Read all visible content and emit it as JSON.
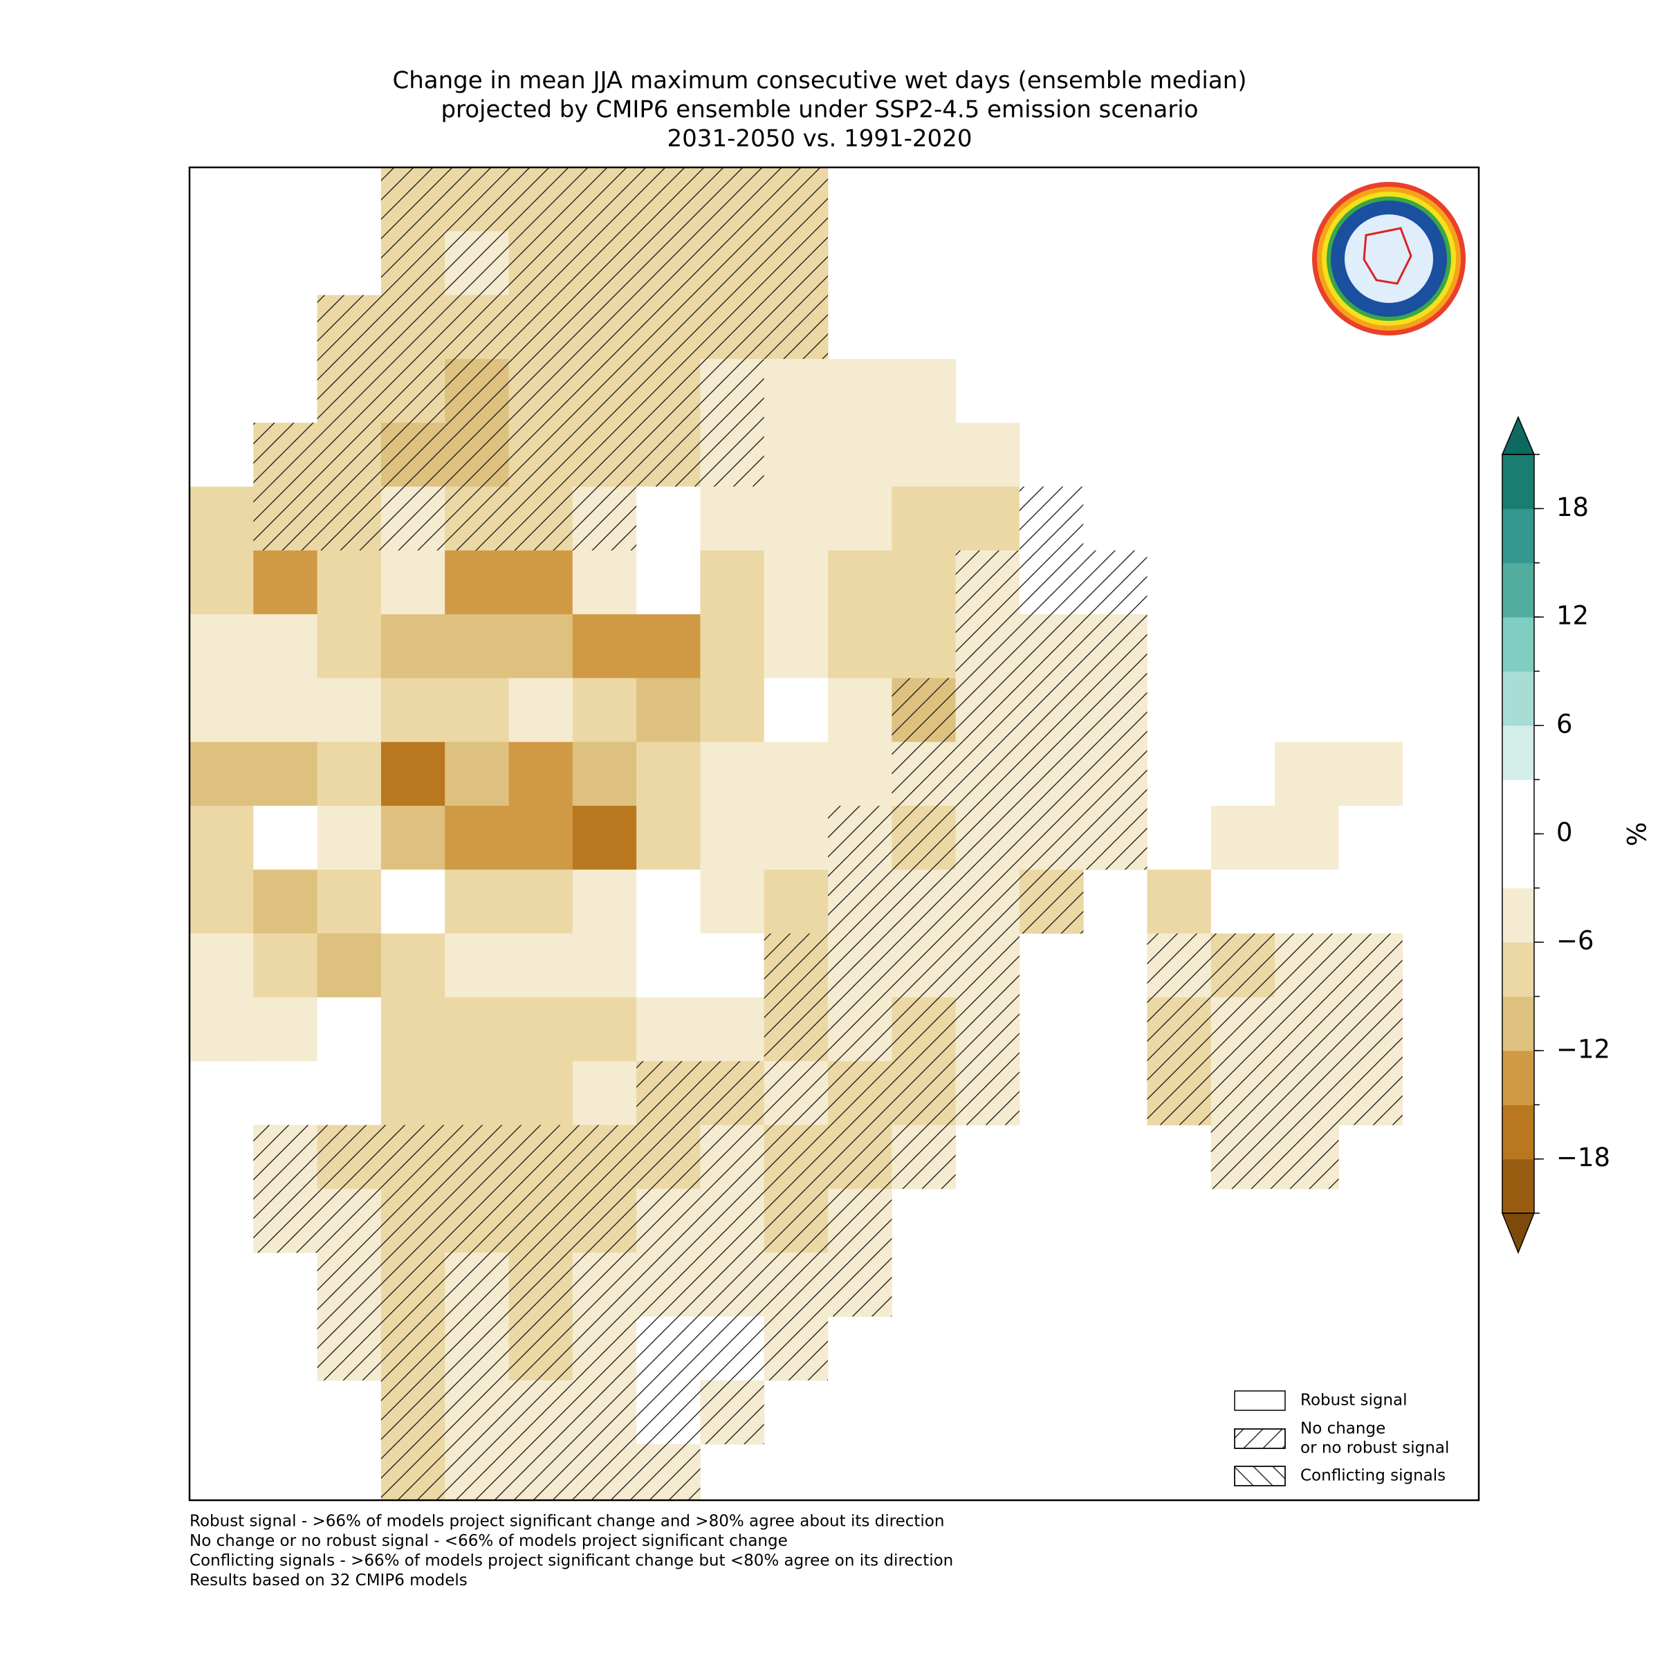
{
  "title": [
    "Change in mean JJA maximum consecutive wet days (ensemble median)",
    "projected by CMIP6 ensemble under SSP2-4.5 emission scenario",
    "2031-2050 vs. 1991-2020"
  ],
  "map": {
    "values": [
      [
        null,
        null,
        null,
        -6,
        -6,
        -6,
        -6,
        -6,
        -6,
        -6,
        null,
        null,
        null,
        null,
        null,
        null,
        null,
        null,
        null,
        null
      ],
      [
        null,
        null,
        null,
        -6,
        -5,
        -6,
        -8,
        -6,
        -6,
        -6,
        null,
        null,
        null,
        null,
        null,
        null,
        null,
        null,
        null,
        null
      ],
      [
        null,
        null,
        -6,
        -8,
        -8,
        -6,
        -8,
        -6,
        -6,
        -6,
        null,
        null,
        null,
        null,
        null,
        null,
        null,
        null,
        null,
        null
      ],
      [
        null,
        null,
        -8,
        -8,
        -9,
        -8,
        -6,
        -6,
        -5,
        -3,
        -3,
        -4,
        null,
        null,
        null,
        null,
        null,
        null,
        null,
        null
      ],
      [
        null,
        -6,
        -8,
        -9,
        -10,
        -8,
        -6,
        -6,
        -4,
        -5,
        -4,
        -5,
        -5,
        null,
        null,
        null,
        null,
        null,
        null,
        null
      ],
      [
        -6,
        -7,
        -6,
        -5,
        -7,
        -6,
        -4,
        -2,
        -5,
        -5,
        -3,
        -8,
        -6,
        -2,
        null,
        null,
        null,
        null,
        null,
        null
      ],
      [
        -8,
        -13,
        -8,
        -5,
        -14,
        -12,
        -4,
        -2,
        -6,
        -4,
        -8,
        -6,
        -4,
        -1,
        -2,
        null,
        null,
        null,
        null,
        null
      ],
      [
        -5,
        -4,
        -8,
        -10,
        -11,
        -10,
        -13,
        -12,
        -8,
        -4,
        -6,
        -7,
        -5,
        -4,
        -4,
        null,
        null,
        null,
        null,
        null
      ],
      [
        -4,
        -4,
        -5,
        -8,
        -8,
        -4,
        -8,
        -10,
        -6,
        3,
        -4,
        -9,
        -3,
        -3,
        -5,
        null,
        null,
        null,
        null,
        null
      ],
      [
        -10,
        -10,
        -6,
        -17,
        -10,
        -13,
        -11,
        -6,
        -5,
        -3,
        -4,
        -3,
        -3,
        -5,
        -5,
        null,
        null,
        -3,
        -4,
        null
      ],
      [
        -6,
        -2,
        -5,
        -10,
        -13,
        -12,
        -15,
        -8,
        -3,
        -3,
        -3,
        -6,
        -4,
        -5,
        -5,
        null,
        -4,
        -3,
        3,
        null
      ],
      [
        -6,
        -10,
        -8,
        2,
        -8,
        -6,
        -4,
        -2,
        -3,
        -6,
        -4,
        -5,
        -5,
        -6,
        null,
        -6,
        -2,
        -2,
        -1,
        2
      ],
      [
        -3,
        -8,
        -10,
        -8,
        -5,
        -4,
        -5,
        -2,
        -2,
        -6,
        -5,
        -5,
        -3,
        null,
        null,
        -5,
        -6,
        -4,
        -3,
        null
      ],
      [
        -3,
        -4,
        2,
        -8,
        -8,
        -8,
        -8,
        -4,
        -5,
        -6,
        -5,
        -6,
        -4,
        null,
        null,
        -6,
        -3,
        -5,
        -3,
        null
      ],
      [
        null,
        3,
        -2,
        -8,
        -8,
        -8,
        -4,
        -8,
        -6,
        -4,
        -6,
        -6,
        -4,
        null,
        null,
        -8,
        -4,
        -4,
        -3,
        null
      ],
      [
        null,
        -3,
        -6,
        -6,
        -6,
        -6,
        -6,
        -6,
        -5,
        -6,
        -6,
        -5,
        null,
        null,
        null,
        null,
        -5,
        -4,
        null,
        null
      ],
      [
        null,
        -4,
        -5,
        -6,
        -7,
        -6,
        -6,
        -4,
        -5,
        -6,
        -5,
        null,
        null,
        null,
        null,
        null,
        null,
        null,
        null,
        null
      ],
      [
        null,
        null,
        -5,
        -6,
        -5,
        -6,
        -5,
        -3,
        -3,
        -5,
        -4,
        null,
        null,
        null,
        null,
        null,
        null,
        null,
        null,
        null
      ],
      [
        null,
        null,
        -4,
        -6,
        -5,
        -6,
        -5,
        -2,
        -2,
        -4,
        null,
        null,
        null,
        null,
        null,
        null,
        null,
        null,
        null,
        null
      ],
      [
        null,
        null,
        null,
        -6,
        -5,
        -5,
        -4,
        -2,
        -3,
        null,
        null,
        null,
        null,
        null,
        null,
        null,
        null,
        null,
        null,
        null
      ],
      [
        null,
        null,
        null,
        -6,
        -5,
        -5,
        -5,
        -4,
        null,
        null,
        null,
        null,
        null,
        null,
        null,
        null,
        null,
        null,
        null,
        null
      ]
    ],
    "signal": [
      [
        0,
        0,
        0,
        1,
        1,
        1,
        1,
        1,
        1,
        1,
        0,
        0,
        0,
        0,
        0,
        0,
        0,
        0,
        0,
        0
      ],
      [
        0,
        0,
        0,
        1,
        1,
        1,
        1,
        1,
        1,
        1,
        0,
        0,
        0,
        0,
        0,
        0,
        0,
        0,
        0,
        0
      ],
      [
        0,
        0,
        1,
        1,
        1,
        1,
        1,
        1,
        1,
        1,
        0,
        0,
        0,
        0,
        0,
        0,
        0,
        0,
        0,
        0
      ],
      [
        0,
        0,
        1,
        1,
        1,
        1,
        1,
        1,
        1,
        0,
        0,
        0,
        0,
        0,
        0,
        0,
        0,
        0,
        0,
        0
      ],
      [
        0,
        1,
        1,
        1,
        1,
        1,
        1,
        1,
        1,
        0,
        0,
        0,
        0,
        0,
        0,
        0,
        0,
        0,
        0,
        0
      ],
      [
        0,
        1,
        1,
        1,
        1,
        1,
        1,
        0,
        0,
        0,
        0,
        0,
        0,
        1,
        0,
        0,
        0,
        0,
        0,
        0
      ],
      [
        0,
        0,
        0,
        0,
        0,
        0,
        0,
        0,
        0,
        0,
        0,
        0,
        1,
        1,
        1,
        0,
        0,
        0,
        0,
        0
      ],
      [
        0,
        0,
        0,
        0,
        0,
        0,
        0,
        0,
        0,
        0,
        0,
        0,
        1,
        1,
        1,
        0,
        0,
        0,
        0,
        0
      ],
      [
        0,
        0,
        0,
        0,
        0,
        0,
        0,
        0,
        0,
        0,
        0,
        1,
        1,
        1,
        1,
        0,
        0,
        0,
        0,
        0
      ],
      [
        0,
        0,
        0,
        0,
        0,
        0,
        0,
        0,
        0,
        0,
        0,
        1,
        1,
        1,
        1,
        0,
        0,
        0,
        0,
        0
      ],
      [
        0,
        0,
        0,
        0,
        0,
        0,
        0,
        0,
        0,
        0,
        1,
        1,
        1,
        1,
        1,
        0,
        0,
        0,
        0,
        0
      ],
      [
        0,
        0,
        0,
        0,
        0,
        0,
        0,
        0,
        0,
        0,
        1,
        1,
        1,
        1,
        1,
        0,
        0,
        0,
        0,
        0
      ],
      [
        0,
        0,
        0,
        0,
        0,
        0,
        0,
        0,
        0,
        1,
        1,
        1,
        1,
        0,
        0,
        1,
        1,
        1,
        1,
        0
      ],
      [
        0,
        0,
        0,
        0,
        0,
        0,
        0,
        0,
        0,
        1,
        1,
        1,
        1,
        0,
        0,
        1,
        1,
        1,
        1,
        0
      ],
      [
        0,
        0,
        0,
        0,
        0,
        0,
        0,
        1,
        1,
        1,
        1,
        1,
        1,
        0,
        0,
        1,
        1,
        1,
        1,
        0
      ],
      [
        0,
        1,
        1,
        1,
        1,
        1,
        1,
        1,
        1,
        1,
        1,
        1,
        0,
        0,
        0,
        0,
        1,
        1,
        0,
        0
      ],
      [
        0,
        1,
        1,
        1,
        1,
        1,
        1,
        1,
        1,
        1,
        1,
        0,
        0,
        0,
        0,
        0,
        0,
        0,
        0,
        0
      ],
      [
        0,
        0,
        1,
        1,
        1,
        1,
        1,
        1,
        1,
        1,
        1,
        0,
        0,
        0,
        0,
        0,
        0,
        0,
        0,
        0
      ],
      [
        0,
        0,
        1,
        1,
        1,
        1,
        1,
        1,
        1,
        1,
        0,
        0,
        0,
        0,
        0,
        0,
        0,
        0,
        0,
        0
      ],
      [
        0,
        0,
        0,
        1,
        1,
        1,
        1,
        1,
        1,
        0,
        0,
        0,
        0,
        0,
        0,
        0,
        0,
        0,
        0,
        0
      ],
      [
        0,
        0,
        0,
        1,
        1,
        1,
        1,
        1,
        0,
        0,
        0,
        0,
        0,
        0,
        0,
        0,
        0,
        0,
        0,
        0
      ]
    ]
  },
  "colorbar": {
    "label": "%",
    "levels": [
      -21,
      -18,
      -15,
      -12,
      -9,
      -6,
      -3,
      0,
      3,
      6,
      9,
      12,
      15,
      18,
      21
    ],
    "colors": [
      "#995d12",
      "#b9781f",
      "#d09a45",
      "#dfc17f",
      "#ecd8a4",
      "#f5ebd0",
      "#ffffff",
      "#ffffff",
      "#d3ede9",
      "#a8ddd5",
      "#80cdc1",
      "#52ad9f",
      "#35978f",
      "#1b7c72"
    ],
    "extend_colors": [
      "#7e4a0b",
      "#0e6a60"
    ],
    "ticks": [
      {
        "value": -18,
        "label": "−18"
      },
      {
        "value": -12,
        "label": "−12"
      },
      {
        "value": -6,
        "label": "−6"
      },
      0,
      6,
      12,
      18
    ]
  },
  "legend": {
    "items": [
      {
        "lines": [
          "Robust signal"
        ],
        "pattern": "none"
      },
      {
        "lines": [
          "No change",
          "or no robust signal"
        ],
        "pattern": "forward"
      },
      {
        "lines": [
          "Conflicting signals"
        ],
        "pattern": "backward"
      }
    ]
  },
  "notes": [
    "Robust signal - >66% of models project significant change and >80% agree about its direction",
    "No change or no robust signal - <66% of models project significant change",
    "Conflicting signals - >66% of models project significant change but <80% agree on its direction",
    "Results based on 32 CMIP6 models"
  ]
}
